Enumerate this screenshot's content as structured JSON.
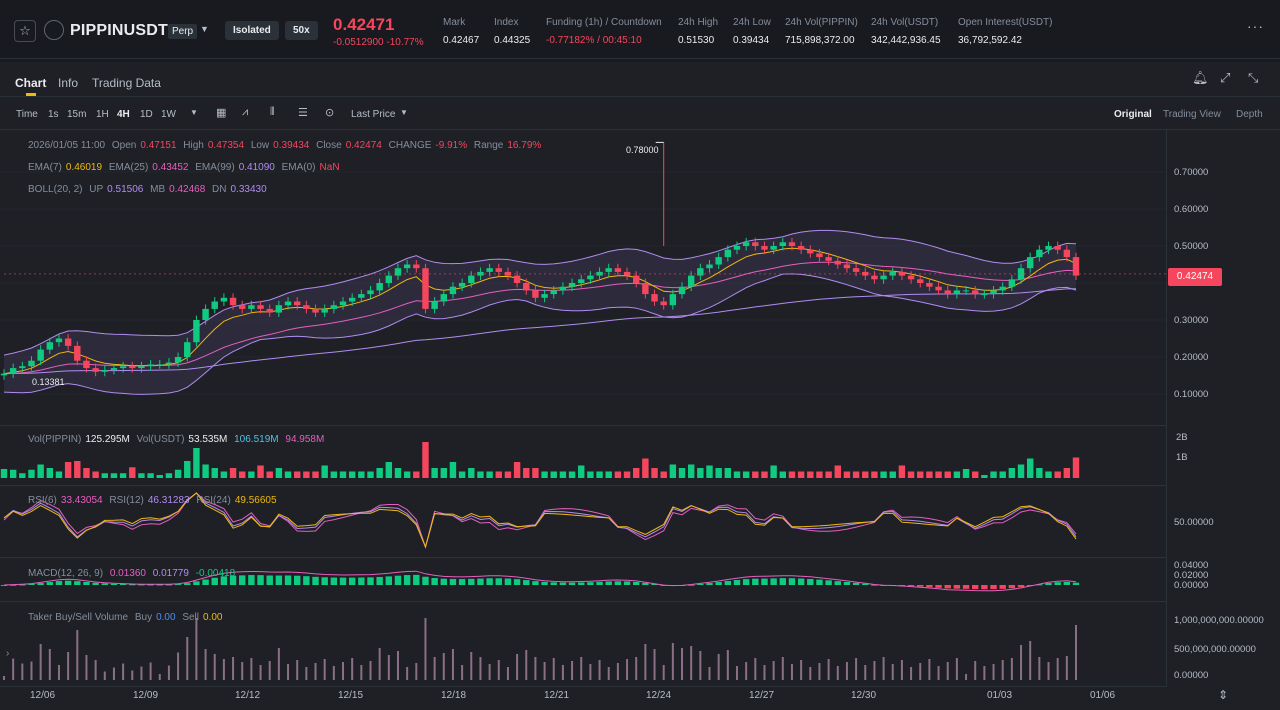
{
  "header": {
    "symbol": "PIPPINUSDT",
    "contract_type": "Perp",
    "margin_mode": "Isolated",
    "leverage": "50x",
    "last_price": "0.42471",
    "change": "-0.0512900 -10.77%",
    "stats": [
      {
        "label": "Mark",
        "value": "0.42467"
      },
      {
        "label": "Index",
        "value": "0.44325"
      },
      {
        "label": "Funding (1h) / Countdown",
        "value": "-0.77182% / 00:45:10"
      },
      {
        "label": "24h High",
        "value": "0.51530"
      },
      {
        "label": "24h Low",
        "value": "0.39434"
      },
      {
        "label": "24h Vol(PIPPIN)",
        "value": "715,898,372.00"
      },
      {
        "label": "24h Vol(USDT)",
        "value": "342,442,936.45"
      },
      {
        "label": "Open Interest(USDT)",
        "value": "36,792,592.42"
      }
    ]
  },
  "tabs": [
    "Chart",
    "Info",
    "Trading Data"
  ],
  "toolbar": {
    "timeframes": [
      "Time",
      "1s",
      "15m",
      "1H",
      "4H",
      "1D",
      "1W"
    ],
    "active_timeframe": "4H",
    "price_source": "Last Price",
    "views": [
      "Original",
      "Trading View",
      "Depth"
    ],
    "active_view": "Original"
  },
  "legends": {
    "ohlc": {
      "date": "2026/01/05 11:00",
      "open_label": "Open",
      "open": "0.47151",
      "high_label": "High",
      "high": "0.47354",
      "low_label": "Low",
      "low": "0.39434",
      "close_label": "Close",
      "close": "0.42474",
      "change_label": "CHANGE",
      "change": "-9.91%",
      "range_label": "Range",
      "range": "16.79%"
    },
    "ema": {
      "ema7_label": "EMA(7)",
      "ema7": "0.46019",
      "ema25_label": "EMA(25)",
      "ema25": "0.43452",
      "ema99_label": "EMA(99)",
      "ema99": "0.41090",
      "ema0_label": "EMA(0)",
      "ema0": "NaN"
    },
    "boll": {
      "label": "BOLL(20, 2)",
      "up_label": "UP",
      "up": "0.51506",
      "mb_label": "MB",
      "mb": "0.42468",
      "dn_label": "DN",
      "dn": "0.33430"
    },
    "vol": {
      "label_a": "Vol(PIPPIN)",
      "val_a": "125.295M",
      "label_b": "Vol(USDT)",
      "val_b": "53.535M",
      "val_c": "106.519M",
      "val_d": "94.958M"
    },
    "rsi": {
      "rsi6_label": "RSI(6)",
      "rsi6": "33.43054",
      "rsi12_label": "RSI(12)",
      "rsi12": "46.31283",
      "rsi24_label": "RSI(24)",
      "rsi24": "49.56605"
    },
    "macd": {
      "label": "MACD(12, 26, 9)",
      "v1": "0.01360",
      "v2": "0.01779",
      "v3": "-0.00418"
    },
    "taker": {
      "label": "Taker Buy/Sell Volume",
      "buy_label": "Buy",
      "buy": "0.00",
      "sell_label": "Sell",
      "sell": "0.00"
    }
  },
  "price_axis": [
    "0.70000",
    "0.60000",
    "0.50000",
    "0.40000",
    "0.30000",
    "0.20000",
    "0.10000"
  ],
  "vol_axis": [
    "2B",
    "1B"
  ],
  "rsi_axis": [
    "50.00000"
  ],
  "macd_axis": [
    "0.04000",
    "0.02000",
    "0.00000"
  ],
  "taker_axis": [
    "1,000,000,000.00000",
    "500,000,000.00000",
    "0.00000"
  ],
  "current_price_tag": "0.42474",
  "annotations": {
    "high_marker": "0.78000",
    "low_marker": "0.13381"
  },
  "x_axis": [
    "12/06",
    "12/09",
    "12/12",
    "12/15",
    "12/18",
    "12/21",
    "12/24",
    "12/27",
    "12/30",
    "01/03",
    "01/06"
  ],
  "chart_data": {
    "type": "candlestick",
    "interval": "4H",
    "ylim": [
      0.05,
      0.78
    ],
    "close_series": [
      0.155,
      0.17,
      0.175,
      0.19,
      0.22,
      0.24,
      0.25,
      0.23,
      0.19,
      0.17,
      0.16,
      0.165,
      0.17,
      0.175,
      0.17,
      0.175,
      0.18,
      0.18,
      0.185,
      0.2,
      0.24,
      0.3,
      0.33,
      0.35,
      0.36,
      0.34,
      0.33,
      0.34,
      0.33,
      0.32,
      0.34,
      0.35,
      0.34,
      0.33,
      0.32,
      0.33,
      0.34,
      0.35,
      0.36,
      0.37,
      0.38,
      0.4,
      0.42,
      0.44,
      0.45,
      0.44,
      0.33,
      0.35,
      0.37,
      0.39,
      0.4,
      0.42,
      0.43,
      0.44,
      0.43,
      0.42,
      0.4,
      0.38,
      0.36,
      0.37,
      0.38,
      0.39,
      0.4,
      0.41,
      0.42,
      0.43,
      0.44,
      0.43,
      0.42,
      0.4,
      0.37,
      0.35,
      0.34,
      0.37,
      0.39,
      0.42,
      0.44,
      0.45,
      0.47,
      0.49,
      0.5,
      0.51,
      0.5,
      0.49,
      0.5,
      0.51,
      0.5,
      0.49,
      0.48,
      0.47,
      0.46,
      0.45,
      0.44,
      0.43,
      0.42,
      0.41,
      0.42,
      0.43,
      0.42,
      0.41,
      0.4,
      0.39,
      0.38,
      0.37,
      0.38,
      0.38,
      0.37,
      0.37,
      0.38,
      0.39,
      0.41,
      0.44,
      0.47,
      0.49,
      0.5,
      0.49,
      0.47,
      0.42
    ]
  }
}
